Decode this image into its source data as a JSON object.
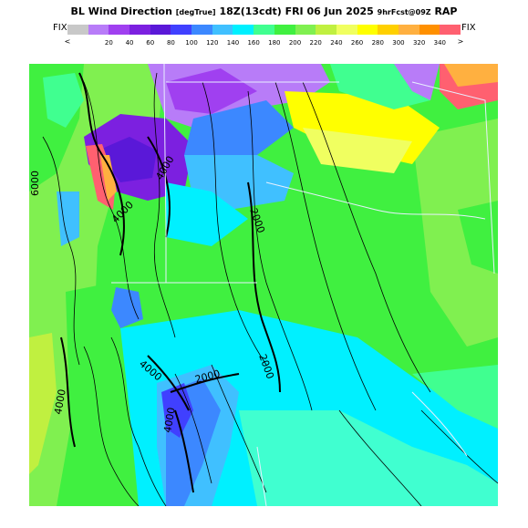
{
  "title": {
    "main": "BL Wind Direction",
    "units": "[degTrue]",
    "time": "18Z(13cdt) FRI 06 Jun 2025",
    "forecast": "9hrFcst@09Z",
    "model": "RAP"
  },
  "legend": {
    "fix_left": "FIX",
    "fix_right": "FIX",
    "arrow_left": "<",
    "arrow_right": ">",
    "colors": [
      "#c8c8c8",
      "#b87cf8",
      "#a040f0",
      "#7c20e0",
      "#5a18d8",
      "#4040ff",
      "#3c88ff",
      "#40c0ff",
      "#00f0ff",
      "#40ff90",
      "#40f040",
      "#80f050",
      "#c0f040",
      "#f0ff60",
      "#ffff00",
      "#ffd000",
      "#ffb040",
      "#ff9000",
      "#ff6070"
    ],
    "tick_labels": [
      "20",
      "40",
      "60",
      "80",
      "100",
      "120",
      "140",
      "160",
      "180",
      "200",
      "220",
      "240",
      "260",
      "280",
      "300",
      "320",
      "340"
    ]
  },
  "map": {
    "contour_labels": [
      "6000",
      "4000",
      "4000",
      "2000",
      "2000",
      "4000",
      "2000",
      "4000",
      "4000"
    ]
  }
}
